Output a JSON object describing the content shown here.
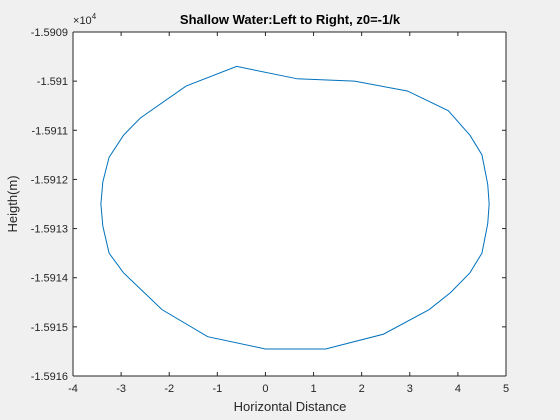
{
  "chart_data": {
    "type": "line",
    "title": "Shallow Water:Left to Right, z0=-1/k",
    "xlabel": "Horizontal Distance",
    "ylabel": "Heigth(m)",
    "xlim": [
      -4,
      5
    ],
    "ylim": [
      -15916,
      -15909
    ],
    "x_ticks": [
      -4,
      -3,
      -2,
      -1,
      0,
      1,
      2,
      3,
      4,
      5
    ],
    "x_tick_labels": [
      "-4",
      "-3",
      "-2",
      "-1",
      "0",
      "1",
      "2",
      "3",
      "4",
      "5"
    ],
    "y_ticks": [
      -15916,
      -15915,
      -15914,
      -15913,
      -15912,
      -15911,
      -15910,
      -15909
    ],
    "y_tick_labels": [
      "-1.5916",
      "-1.5915",
      "-1.5914",
      "-1.5913",
      "-1.5912",
      "-1.5911",
      "-1.591",
      "-1.5909"
    ],
    "y_exponent_label": "10",
    "y_exponent_power": "4",
    "grid": false,
    "series": [
      {
        "color": "#0072BD",
        "x": [
          0.65,
          1.85,
          2.95,
          3.8,
          4.25,
          4.5,
          4.62,
          4.65,
          4.62,
          4.5,
          4.25,
          3.85,
          3.4,
          2.45,
          1.25,
          0.0,
          -1.2,
          -2.15,
          -2.95,
          -3.25,
          -3.38,
          -3.42,
          -3.38,
          -3.25,
          -2.95,
          -2.6,
          -1.65,
          -0.6,
          0.65
        ],
        "y": [
          -15909.95,
          -15910.0,
          -15910.2,
          -15910.6,
          -15911.1,
          -15911.5,
          -15912.1,
          -15912.5,
          -15912.9,
          -15913.5,
          -15913.9,
          -15914.3,
          -15914.65,
          -15915.15,
          -15915.45,
          -15915.45,
          -15915.2,
          -15914.65,
          -15913.9,
          -15913.5,
          -15912.95,
          -15912.5,
          -15912.05,
          -15911.55,
          -15911.1,
          -15910.75,
          -15910.1,
          -15909.7,
          -15909.95
        ]
      }
    ]
  }
}
